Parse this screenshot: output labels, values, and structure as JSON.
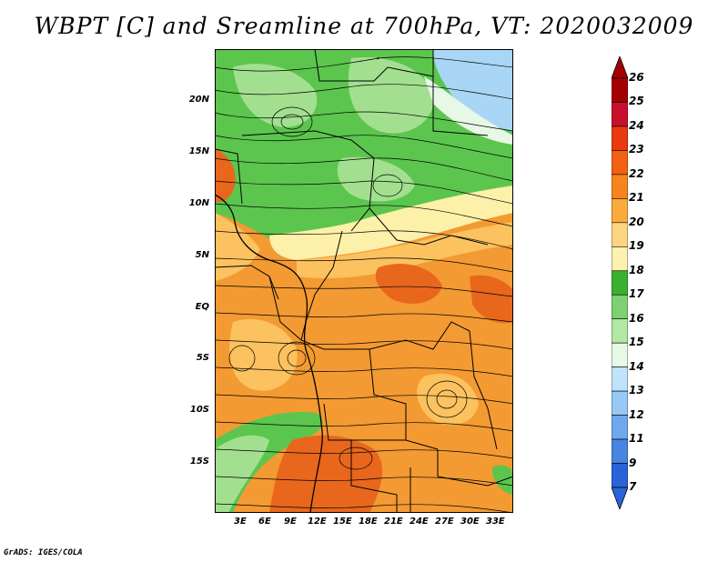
{
  "title": "WBPT [C] and Sreamline at 700hPa, VT: 2020032009",
  "footer": "GrADS: IGES/COLA",
  "map": {
    "lat_ticks": [
      "20N",
      "15N",
      "10N",
      "5N",
      "EQ",
      "5S",
      "10S",
      "15S"
    ],
    "lon_ticks": [
      "3E",
      "6E",
      "9E",
      "12E",
      "15E",
      "18E",
      "21E",
      "24E",
      "27E",
      "30E",
      "33E"
    ]
  },
  "colorbar": {
    "labels": [
      "26",
      "25",
      "24",
      "23",
      "22",
      "21",
      "20",
      "19",
      "18",
      "17",
      "16",
      "15",
      "14",
      "13",
      "12",
      "11",
      "9",
      "7"
    ],
    "colors": [
      "#a50000",
      "#c8102e",
      "#e83a0c",
      "#f26011",
      "#f7851e",
      "#fbab3c",
      "#fdd57f",
      "#fdf1ae",
      "#3cb02f",
      "#7bd26f",
      "#b3e8a4",
      "#e7f8e6",
      "#bfe3fa",
      "#98c9f4",
      "#6fa9ec",
      "#4685e0",
      "#2a63d8"
    ]
  },
  "colors": {
    "green": "#5cc54e",
    "light_green": "#a2e08f",
    "orange": "#f39a32",
    "light_orange": "#fbc25f",
    "deep_orange": "#e8671d",
    "yellow": "#fdf0a8",
    "blue": "#a8d6f4"
  }
}
